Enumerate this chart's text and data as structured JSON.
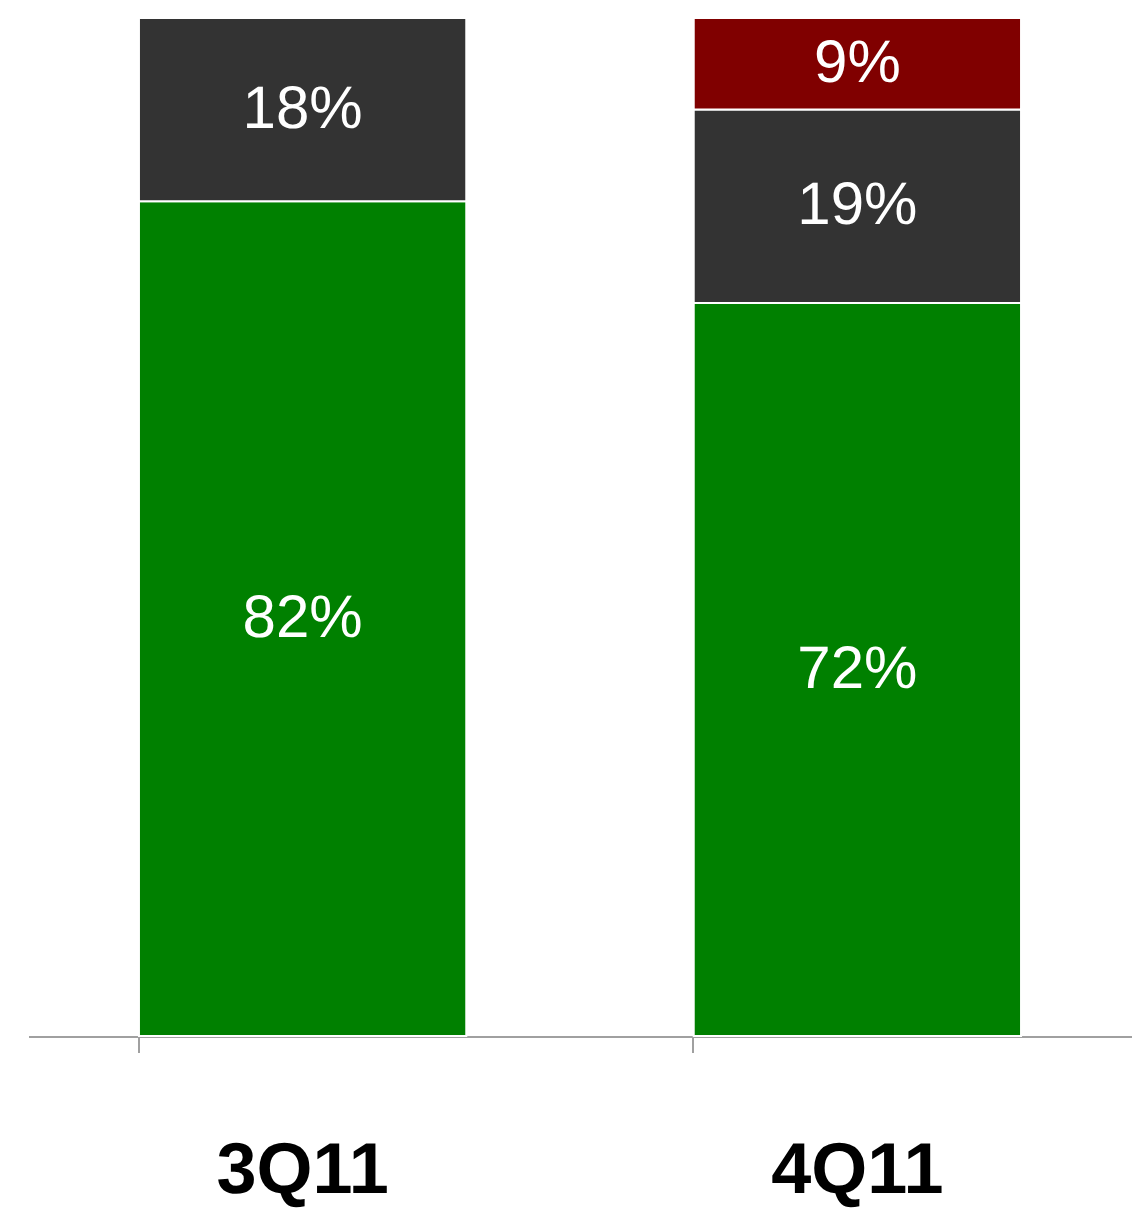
{
  "chart_data": {
    "type": "bar",
    "stacked": true,
    "categories": [
      "3Q11",
      "4Q11"
    ],
    "ylim": [
      0,
      100
    ],
    "series": [
      {
        "color": "#008000",
        "values": [
          82,
          72
        ],
        "value_labels": [
          "82%",
          "72%"
        ]
      },
      {
        "color": "#333333",
        "values": [
          18,
          19
        ],
        "value_labels": [
          "18%",
          "19%"
        ]
      },
      {
        "color": "#800000",
        "values": [
          null,
          9
        ],
        "value_labels": [
          null,
          "9%"
        ]
      }
    ]
  }
}
